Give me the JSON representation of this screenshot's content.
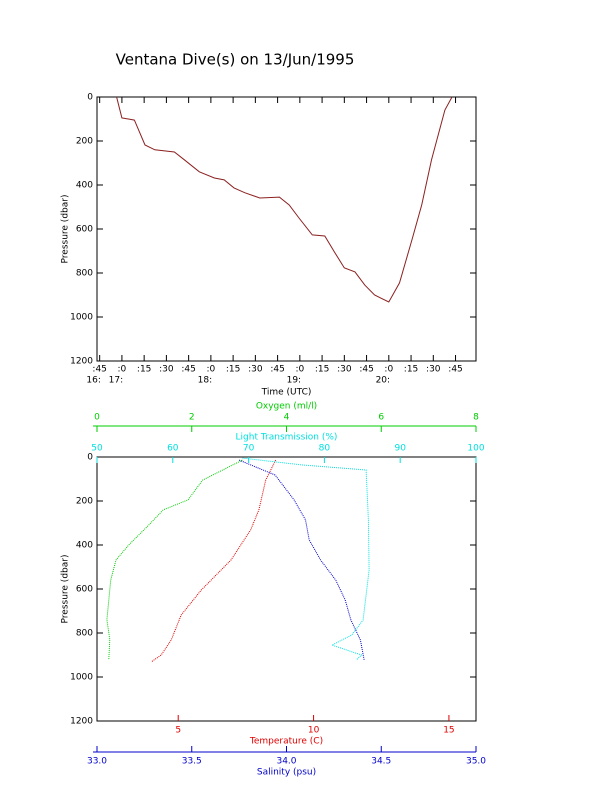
{
  "chart_data": [
    {
      "type": "line",
      "title": "Ventana Dive(s) on 13/Jun/1995",
      "xlabel": "Time (UTC)",
      "ylabel": "Pressure (dbar)",
      "color": "#8b2020",
      "x": [
        16.94,
        17.0,
        17.14,
        17.26,
        17.37,
        17.59,
        17.7,
        17.87,
        18.04,
        18.15,
        18.26,
        18.38,
        18.55,
        18.77,
        18.88,
        18.99,
        19.14,
        19.28,
        19.39,
        19.5,
        19.62,
        19.73,
        19.84,
        20.0,
        20.12,
        20.26,
        20.37,
        20.48,
        20.63,
        20.71
      ],
      "values": [
        0,
        95,
        105,
        218,
        240,
        250,
        285,
        340,
        368,
        377,
        413,
        435,
        459,
        455,
        491,
        550,
        627,
        632,
        705,
        777,
        795,
        855,
        900,
        932,
        845,
        650,
        491,
        286,
        59,
        0
      ],
      "xlim": [
        16.72,
        20.98
      ],
      "xticks": [
        {
          "value": 16.75,
          "label": ":45"
        },
        {
          "value": 17,
          "label": ":0"
        },
        {
          "value": 17.25,
          "label": ":15"
        },
        {
          "value": 17.5,
          "label": ":30"
        },
        {
          "value": 17.75,
          "label": ":45"
        },
        {
          "value": 18,
          "label": ":0"
        },
        {
          "value": 18.25,
          "label": ":15"
        },
        {
          "value": 18.5,
          "label": ":30"
        },
        {
          "value": 18.75,
          "label": ":45"
        },
        {
          "value": 19,
          "label": ":0"
        },
        {
          "value": 19.25,
          "label": ":15"
        },
        {
          "value": 19.5,
          "label": ":30"
        },
        {
          "value": 19.75,
          "label": ":45"
        },
        {
          "value": 20,
          "label": ":0"
        },
        {
          "value": 20.25,
          "label": ":15"
        },
        {
          "value": 20.5,
          "label": ":30"
        },
        {
          "value": 20.75,
          "label": ":45"
        }
      ],
      "xticks_hours": [
        {
          "value": 16.75,
          "label": "16:"
        },
        {
          "value": 17,
          "label": "17:"
        },
        {
          "value": 18,
          "label": "18:"
        },
        {
          "value": 19,
          "label": "19:"
        },
        {
          "value": 20,
          "label": "20:"
        }
      ],
      "ylim": [
        0,
        1200
      ],
      "yticks": [
        0,
        200,
        400,
        600,
        800,
        1000,
        1200
      ],
      "y_inverted": true
    },
    {
      "type": "profile",
      "ylabel": "Pressure (dbar)",
      "ylim": [
        0,
        1200
      ],
      "yticks": [
        0,
        200,
        400,
        600,
        800,
        1000,
        1200
      ],
      "y_inverted": true,
      "series": [
        {
          "name": "Temperature (C)",
          "color": "#e00000",
          "xlim": [
            2,
            16
          ],
          "xticks": [
            5,
            10,
            15
          ],
          "values": [
            8.6,
            8.23,
            7.98,
            7.68,
            6.95,
            5.85,
            5.11,
            4.74,
            4.37,
            4.0
          ],
          "pressure": [
            14,
            105,
            240,
            330,
            468,
            605,
            718,
            832,
            900,
            932
          ]
        },
        {
          "name": "Salinity (psu)",
          "color": "#0000cc",
          "xlim": [
            33,
            35
          ],
          "xticks": [
            {
              "value": 33,
              "label": "33.0"
            },
            33.5,
            {
              "value": 34,
              "label": "34.0"
            },
            34.5,
            {
              "value": 35,
              "label": "35.0"
            }
          ],
          "values": [
            33.75,
            33.94,
            34.04,
            34.1,
            34.12,
            34.18,
            34.26,
            34.31,
            34.34,
            34.39,
            34.41
          ],
          "pressure": [
            14,
            82,
            195,
            286,
            377,
            468,
            560,
            650,
            741,
            832,
            923
          ]
        },
        {
          "name": "Light Transmission (%)",
          "color": "#00e0e0",
          "xlim": [
            50,
            100
          ],
          "xticks": [
            50,
            60,
            70,
            80,
            90,
            100
          ],
          "values": [
            69.2,
            77.0,
            85.5,
            85.8,
            85.9,
            85.1,
            83.6,
            81.0,
            84.9,
            84.2
          ],
          "pressure": [
            5,
            36,
            59,
            286,
            514,
            741,
            809,
            855,
            900,
            923
          ]
        },
        {
          "name": "Oxygen (ml/l)",
          "color": "#00cc00",
          "xlim": [
            0,
            8
          ],
          "xticks": [
            0,
            2,
            4,
            6,
            8
          ],
          "values": [
            3.07,
            2.23,
            1.92,
            1.4,
            1.09,
            0.67,
            0.4,
            0.29,
            0.21,
            0.27,
            0.25
          ],
          "pressure": [
            14,
            105,
            195,
            240,
            310,
            400,
            468,
            560,
            740,
            830,
            922
          ]
        }
      ]
    }
  ]
}
